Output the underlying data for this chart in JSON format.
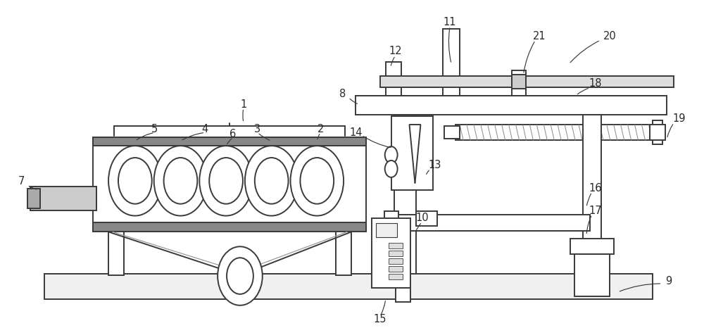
{
  "bg_color": "#ffffff",
  "line_color": "#3a3a3a",
  "lw": 1.4,
  "lw_thin": 0.8,
  "lw_thick": 2.2,
  "label_fontsize": 10.5,
  "label_color": "#2a2a2a"
}
